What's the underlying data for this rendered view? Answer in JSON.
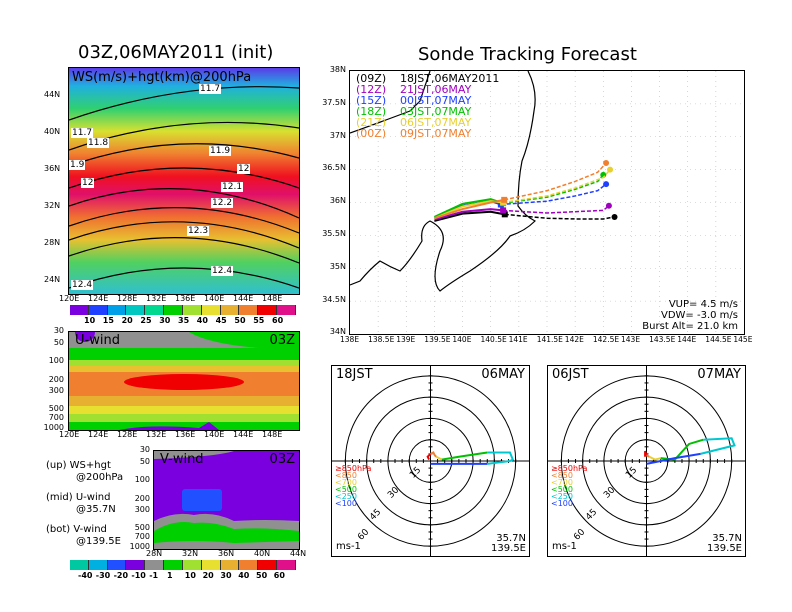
{
  "chart_data": [
    {
      "type": "heatmap",
      "title": "03Z,06MAY2011 (init)",
      "subtitle": "WS(m/s)+hgt(km)@200hPa",
      "x_ticks": [
        "120E",
        "124E",
        "128E",
        "132E",
        "136E",
        "140E",
        "144E",
        "148E"
      ],
      "y_ticks": [
        "44N",
        "40N",
        "36N",
        "32N",
        "28N",
        "24N"
      ],
      "contour_labels": [
        "11.7",
        "11.7",
        "11.8",
        "1.9",
        "12",
        "11.9",
        "12",
        "12.1",
        "12.2",
        "12.3",
        "12.4",
        "12.4"
      ],
      "colorbar": {
        "ticks": [
          "10",
          "15",
          "20",
          "25",
          "30",
          "35",
          "40",
          "45",
          "50",
          "55",
          "60"
        ],
        "colors": [
          "#7a00e0",
          "#2040ff",
          "#00a0e8",
          "#00c8c0",
          "#00d890",
          "#00d000",
          "#a0e030",
          "#e8e030",
          "#e8b030",
          "#f08030",
          "#f00000",
          "#e0108a"
        ]
      }
    },
    {
      "type": "heatmap",
      "title": "U-wind",
      "time_label": "03Z",
      "x_ticks": [
        "120E",
        "124E",
        "128E",
        "132E",
        "136E",
        "140E",
        "144E",
        "148E"
      ],
      "y_ticks": [
        "30",
        "50",
        "100",
        "200",
        "300",
        "500",
        "700",
        "1000"
      ]
    },
    {
      "type": "heatmap",
      "title": "V-wind",
      "time_label": "03Z",
      "x_ticks": [
        "28N",
        "32N",
        "36N",
        "40N",
        "44N"
      ],
      "y_ticks": [
        "30",
        "50",
        "100",
        "200",
        "300",
        "500",
        "700",
        "1000"
      ],
      "colorbar": {
        "ticks": [
          "-40",
          "-30",
          "-20",
          "-10",
          "-1",
          "1",
          "10",
          "20",
          "30",
          "40",
          "50",
          "60"
        ],
        "colors": [
          "#00c8a0",
          "#00b0e0",
          "#2050ff",
          "#7a00e0",
          "#909090",
          "#00d000",
          "#a0e030",
          "#e8e030",
          "#e8b030",
          "#f08030",
          "#f00000",
          "#e0108a"
        ]
      }
    },
    {
      "type": "line",
      "title": "Sonde Tracking Forecast",
      "x_ticks": [
        "138E",
        "138.5E",
        "139E",
        "139.5E",
        "140E",
        "140.5E",
        "141E",
        "141.5E",
        "142E",
        "142.5E",
        "143E",
        "143.5E",
        "144E",
        "144.5E",
        "145E"
      ],
      "y_ticks": [
        "38N",
        "37.5N",
        "37N",
        "36.5N",
        "36N",
        "35.5N",
        "35N",
        "34.5N",
        "34N"
      ],
      "xlim": [
        138,
        145
      ],
      "ylim": [
        34,
        38
      ],
      "series": [
        {
          "name": "(09Z)",
          "label": "18JST,06MAY2011",
          "color": "#000000",
          "x": [
            139.5,
            140.0,
            140.5,
            140.75,
            141.5,
            142.0,
            142.5,
            142.7
          ],
          "y": [
            35.72,
            35.83,
            35.86,
            35.82,
            35.76,
            35.75,
            35.75,
            35.78
          ]
        },
        {
          "name": "(12Z)",
          "label": "21JST,06MAY",
          "color": "#a000c0",
          "x": [
            139.5,
            140.0,
            140.5,
            140.72,
            141.5,
            142.0,
            142.5,
            142.6
          ],
          "y": [
            35.74,
            35.86,
            35.9,
            35.88,
            35.84,
            35.86,
            35.88,
            35.95
          ]
        },
        {
          "name": "(15Z)",
          "label": "00JST,07MAY",
          "color": "#2040ff",
          "x": [
            139.5,
            140.0,
            140.5,
            140.68,
            141.5,
            142.0,
            142.4,
            142.55
          ],
          "y": [
            35.76,
            35.95,
            36.02,
            35.97,
            36.02,
            36.1,
            36.18,
            36.28
          ]
        },
        {
          "name": "(18Z)",
          "label": "03JST,07MAY",
          "color": "#00c000",
          "x": [
            139.5,
            140.0,
            140.5,
            140.72,
            141.5,
            142.0,
            142.4,
            142.5
          ],
          "y": [
            35.78,
            35.98,
            36.05,
            35.99,
            36.08,
            36.2,
            36.32,
            36.42
          ]
        },
        {
          "name": "(21Z)",
          "label": "06JST,07MAY",
          "color": "#e8d030",
          "x": [
            139.5,
            140.0,
            140.5,
            140.72,
            141.5,
            142.0,
            142.5,
            142.62
          ],
          "y": [
            35.76,
            35.94,
            36.02,
            36.0,
            36.1,
            36.22,
            36.38,
            36.5
          ]
        },
        {
          "name": "(00Z)",
          "label": "09JST,07MAY",
          "color": "#f08030",
          "x": [
            139.5,
            140.0,
            140.5,
            140.74,
            141.5,
            142.0,
            142.4,
            142.55
          ],
          "y": [
            35.76,
            35.9,
            36.0,
            36.04,
            36.18,
            36.32,
            36.46,
            36.6
          ]
        }
      ],
      "annotations": [
        "VUP= 4.5 m/s",
        "VDW= -3.0 m/s",
        "Burst Alt= 21.0 km"
      ]
    },
    {
      "type": "line",
      "title": "18JST",
      "date_label": "06MAY",
      "ring_labels": [
        "15",
        "30",
        "45",
        "60"
      ],
      "unit": "ms-1",
      "location": [
        "35.7N",
        "139.5E"
      ],
      "legend": [
        {
          "label": "≥850hPa",
          "color": "#f00000"
        },
        {
          "label": "<850",
          "color": "#f08030"
        },
        {
          "label": "<700",
          "color": "#e8d030"
        },
        {
          "label": "<500",
          "color": "#00c000"
        },
        {
          "label": "<250",
          "color": "#00c8d0"
        },
        {
          "label": "<100",
          "color": "#2040ff"
        }
      ],
      "segments": [
        {
          "color": "#f00000",
          "u": [
            -1,
            -2,
            -1,
            0
          ],
          "v": [
            1,
            3,
            4,
            5
          ]
        },
        {
          "color": "#f08030",
          "u": [
            0,
            2,
            3,
            4
          ],
          "v": [
            5,
            6,
            4,
            3
          ]
        },
        {
          "color": "#e8d030",
          "u": [
            4,
            6,
            8
          ],
          "v": [
            3,
            2,
            1
          ]
        },
        {
          "color": "#00c000",
          "u": [
            8,
            20,
            40
          ],
          "v": [
            1,
            3,
            6
          ]
        },
        {
          "color": "#00c8d0",
          "u": [
            40,
            56,
            58,
            56,
            40
          ],
          "v": [
            6,
            6,
            1,
            0,
            -2
          ]
        },
        {
          "color": "#2040ff",
          "u": [
            40,
            20,
            0
          ],
          "v": [
            -2,
            -2,
            -2
          ]
        }
      ]
    },
    {
      "type": "line",
      "title": "06JST",
      "date_label": "07MAY",
      "ring_labels": [
        "15",
        "30",
        "45",
        "60"
      ],
      "unit": "ms-1",
      "location": [
        "35.7N",
        "139.5E"
      ],
      "legend": [
        {
          "label": "≥850hPa",
          "color": "#f00000"
        },
        {
          "label": "<850",
          "color": "#f08030"
        },
        {
          "label": "<700",
          "color": "#e8d030"
        },
        {
          "label": "<500",
          "color": "#00c000"
        },
        {
          "label": "<250",
          "color": "#00c8d0"
        },
        {
          "label": "<100",
          "color": "#2040ff"
        }
      ],
      "segments": [
        {
          "color": "#f00000",
          "u": [
            -1,
            -1,
            0
          ],
          "v": [
            3,
            7,
            4
          ]
        },
        {
          "color": "#f08030",
          "u": [
            0,
            2
          ],
          "v": [
            4,
            3
          ]
        },
        {
          "color": "#e8d030",
          "u": [
            2,
            6,
            10
          ],
          "v": [
            3,
            1,
            2
          ]
        },
        {
          "color": "#00c000",
          "u": [
            10,
            20,
            30,
            40
          ],
          "v": [
            2,
            1,
            12,
            15
          ]
        },
        {
          "color": "#00c8d0",
          "u": [
            40,
            60,
            62,
            38
          ],
          "v": [
            15,
            16,
            11,
            5
          ]
        },
        {
          "color": "#2040ff",
          "u": [
            38,
            20,
            0
          ],
          "v": [
            5,
            2,
            -2
          ]
        }
      ]
    }
  ],
  "legend_text": {
    "up": "(up) WS+hgt",
    "up2": "@200hPa",
    "mid": "(mid) U-wind",
    "mid2": "@35.7N",
    "bot": "(bot) V-wind",
    "bot2": "@139.5E"
  }
}
